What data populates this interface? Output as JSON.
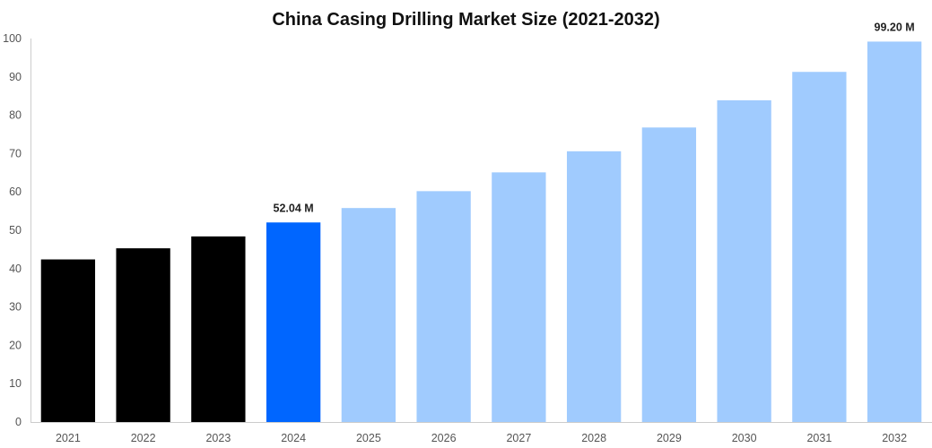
{
  "chart_data": {
    "type": "bar",
    "title": "China Casing Drilling Market Size (2021-2032)",
    "xlabel": "",
    "ylabel": "",
    "categories": [
      "2021",
      "2022",
      "2023",
      "2024",
      "2025",
      "2026",
      "2027",
      "2028",
      "2029",
      "2030",
      "2031",
      "2032"
    ],
    "values": [
      42.4,
      45.3,
      48.4,
      52.04,
      55.8,
      60.2,
      65.1,
      70.6,
      76.8,
      83.9,
      91.3,
      99.2
    ],
    "bar_colors": [
      "#000000",
      "#000000",
      "#000000",
      "#0066ff",
      "#a0cbfe",
      "#a0cbfe",
      "#a0cbfe",
      "#a0cbfe",
      "#a0cbfe",
      "#a0cbfe",
      "#a0cbfe",
      "#a0cbfe"
    ],
    "data_labels": [
      {
        "index": 3,
        "text": "52.04 M"
      },
      {
        "index": 11,
        "text": "99.20 M"
      }
    ],
    "ylim": [
      0,
      100
    ],
    "yticks": [
      0,
      10,
      20,
      30,
      40,
      50,
      60,
      70,
      80,
      90,
      100
    ],
    "grid": false,
    "legend": "none"
  }
}
